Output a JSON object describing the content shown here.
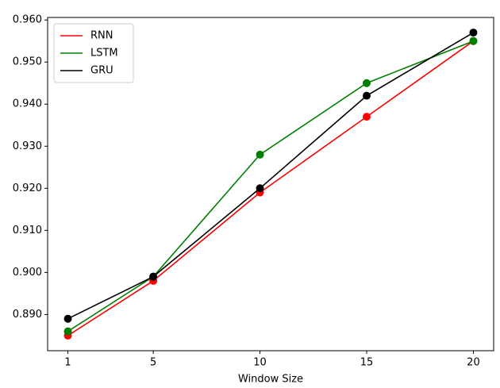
{
  "chart_data": {
    "type": "line",
    "xlabel": "Window Size",
    "x": [
      1,
      5,
      10,
      15,
      20
    ],
    "series": [
      {
        "name": "RNN",
        "color": "#ff0000",
        "values": [
          0.885,
          0.898,
          0.919,
          0.937,
          0.955
        ]
      },
      {
        "name": "LSTM",
        "color": "#008000",
        "values": [
          0.886,
          0.899,
          0.928,
          0.945,
          0.955
        ]
      },
      {
        "name": "GRU",
        "color": "#000000",
        "values": [
          0.889,
          0.899,
          0.92,
          0.942,
          0.957
        ]
      }
    ],
    "xlim": [
      0.05,
      20.95
    ],
    "xticks": [
      1,
      5,
      10,
      15,
      20
    ],
    "ylim": [
      0.8814,
      0.9606
    ],
    "yticks": [
      {
        "value": 0.89,
        "label": "0.890"
      },
      {
        "value": 0.9,
        "label": "0.900"
      },
      {
        "value": 0.91,
        "label": "0.910"
      },
      {
        "value": 0.92,
        "label": "0.920"
      },
      {
        "value": 0.93,
        "label": "0.930"
      },
      {
        "value": 0.94,
        "label": "0.940"
      },
      {
        "value": 0.95,
        "label": "0.950"
      },
      {
        "value": 0.96,
        "label": "0.960"
      }
    ],
    "legend": "upper left",
    "markers": true
  }
}
